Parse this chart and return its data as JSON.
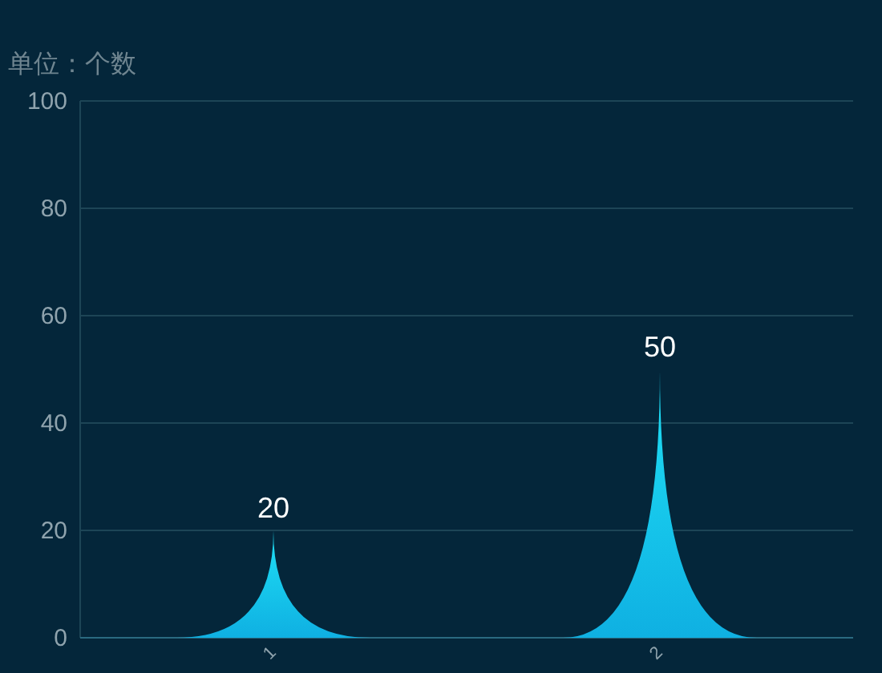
{
  "chart_data": {
    "type": "bar",
    "ylabel": "单位：个数",
    "categories": [
      "1",
      "2"
    ],
    "values": [
      20,
      50
    ],
    "color": "#0fb0e2",
    "ylim": [
      0,
      100
    ],
    "yticks": [
      0,
      20,
      40,
      60,
      80,
      100
    ],
    "grid": "y",
    "data_labels": true
  }
}
